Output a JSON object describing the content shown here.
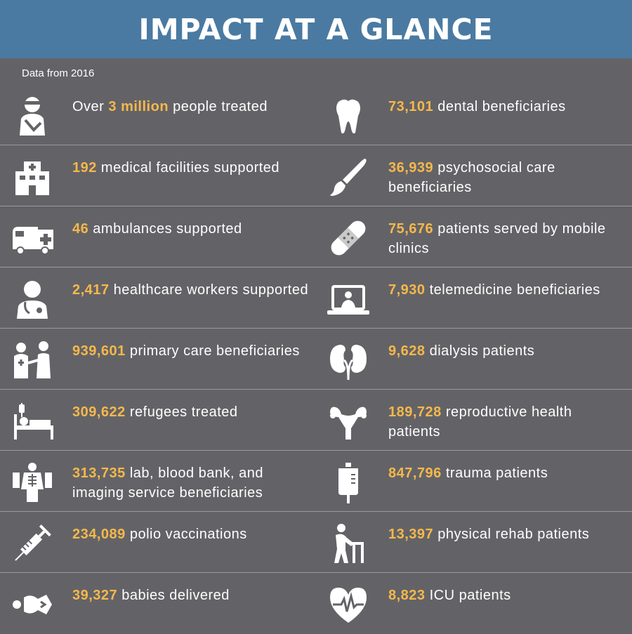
{
  "title": "IMPACT AT A GLANCE",
  "subtitle": "Data from 2016",
  "colors": {
    "header": "#4a7aa2",
    "background": "#636367",
    "accent": "#f6b84b",
    "text": "#ffffff"
  },
  "rows": [
    [
      {
        "icon": "injured-person-icon",
        "pre": "Over ",
        "num": "3 million",
        "post": " people treated"
      },
      {
        "icon": "tooth-icon",
        "pre": "",
        "num": "73,101",
        "post": " dental beneficiaries"
      }
    ],
    [
      {
        "icon": "hospital-icon",
        "pre": "",
        "num": "192",
        "post": " medical facilities supported"
      },
      {
        "icon": "paintbrush-icon",
        "pre": "",
        "num": "36,939",
        "post": " psychosocial care beneficiaries"
      }
    ],
    [
      {
        "icon": "ambulance-icon",
        "pre": "",
        "num": "46",
        "post": " ambulances supported"
      },
      {
        "icon": "bandage-icon",
        "pre": "",
        "num": "75,676",
        "post": " patients served by mobile clinics"
      }
    ],
    [
      {
        "icon": "doctor-icon",
        "pre": "",
        "num": "2,417",
        "post": " healthcare workers supported"
      },
      {
        "icon": "laptop-doctor-icon",
        "pre": "",
        "num": "7,930",
        "post": " telemedicine beneficiaries"
      }
    ],
    [
      {
        "icon": "doctor-patient-icon",
        "pre": "",
        "num": "939,601",
        "post": " primary care beneficiaries"
      },
      {
        "icon": "kidneys-icon",
        "pre": "",
        "num": "9,628",
        "post": " dialysis patients"
      }
    ],
    [
      {
        "icon": "hospital-bed-icon",
        "pre": "",
        "num": "309,622",
        "post": " refugees treated"
      },
      {
        "icon": "uterus-icon",
        "pre": "",
        "num": "189,728",
        "post": " reproductive health patients"
      }
    ],
    [
      {
        "icon": "xray-icon",
        "pre": "",
        "num": "313,735",
        "post": " lab, blood bank, and imaging service beneficiaries"
      },
      {
        "icon": "iv-bag-icon",
        "pre": "",
        "num": "847,796",
        "post": " trauma patients"
      }
    ],
    [
      {
        "icon": "syringe-icon",
        "pre": "",
        "num": "234,089",
        "post": " polio vaccinations"
      },
      {
        "icon": "walker-icon",
        "pre": "",
        "num": "13,397",
        "post": " physical rehab patients"
      }
    ],
    [
      {
        "icon": "baby-icon",
        "pre": "",
        "num": "39,327",
        "post": " babies delivered"
      },
      {
        "icon": "heartbeat-icon",
        "pre": "",
        "num": "8,823",
        "post": " ICU patients"
      }
    ]
  ]
}
